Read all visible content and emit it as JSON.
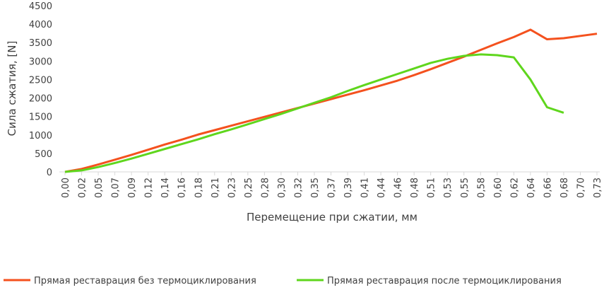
{
  "chart_data": {
    "type": "line",
    "x_label": "Перемещение при сжатии, мм",
    "y_label": "Сила сжатия, [N]",
    "categories": [
      "0,00",
      "0,02",
      "0,05",
      "0,07",
      "0,09",
      "0,12",
      "0,14",
      "0,16",
      "0,18",
      "0,21",
      "0,23",
      "0,25",
      "0,28",
      "0,30",
      "0,32",
      "0,35",
      "0,37",
      "0,39",
      "0,41",
      "0,44",
      "0,46",
      "0,48",
      "0,51",
      "0,53",
      "0,55",
      "0,58",
      "0,60",
      "0,62",
      "0,64",
      "0,66",
      "0,68",
      "0,70",
      "0,73"
    ],
    "series": [
      {
        "name": "Прямая реставрация без термоциклирования",
        "color": "#f4511e",
        "values": [
          0,
          80,
          200,
          330,
          460,
          600,
          740,
          870,
          1010,
          1130,
          1250,
          1370,
          1490,
          1610,
          1730,
          1850,
          1970,
          2090,
          2210,
          2340,
          2470,
          2620,
          2780,
          2950,
          3120,
          3300,
          3480,
          3650,
          3850,
          3590,
          3620,
          3680,
          3740
        ]
      },
      {
        "name": "Прямая реставрация после термоциклирования",
        "color": "#5fd61d",
        "values": [
          0,
          40,
          130,
          240,
          360,
          490,
          620,
          750,
          880,
          1020,
          1150,
          1290,
          1430,
          1570,
          1720,
          1870,
          2020,
          2190,
          2350,
          2500,
          2650,
          2800,
          2950,
          3060,
          3140,
          3180,
          3160,
          3100,
          2500,
          1750,
          1600,
          null,
          null
        ]
      }
    ],
    "ylim": [
      0,
      4500
    ],
    "yticks": [
      0,
      500,
      1000,
      1500,
      2000,
      2500,
      3000,
      3500,
      4000,
      4500
    ],
    "grid": false,
    "legend": "bottom"
  }
}
